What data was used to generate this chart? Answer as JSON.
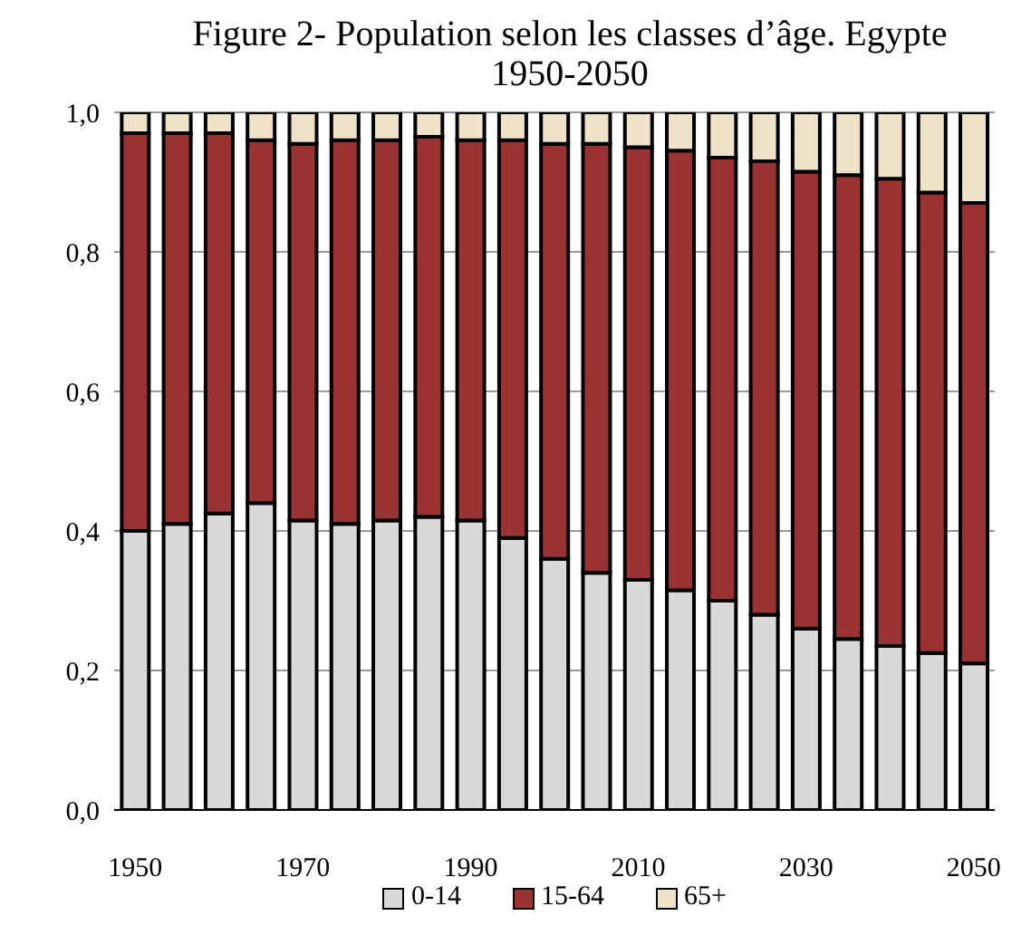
{
  "chart_data": {
    "type": "bar",
    "title": "Figure 2- Population selon les classes d’âge. Egypte 1950-2050",
    "stacked": true,
    "categories": [
      "1950",
      null,
      null,
      null,
      "1970",
      null,
      null,
      null,
      "1990",
      null,
      null,
      null,
      "2010",
      null,
      null,
      null,
      "2030",
      null,
      null,
      null,
      "2050"
    ],
    "series": [
      {
        "name": "0-14",
        "color": "#d9d9d9",
        "values": [
          0.4,
          0.41,
          0.425,
          0.44,
          0.415,
          0.41,
          0.415,
          0.42,
          0.415,
          0.39,
          0.36,
          0.34,
          0.33,
          0.315,
          0.3,
          0.28,
          0.26,
          0.245,
          0.235,
          0.225,
          0.21
        ]
      },
      {
        "name": "15-64",
        "color": "#993333",
        "values": [
          0.57,
          0.56,
          0.545,
          0.52,
          0.54,
          0.55,
          0.545,
          0.545,
          0.545,
          0.57,
          0.595,
          0.615,
          0.62,
          0.63,
          0.635,
          0.65,
          0.655,
          0.665,
          0.67,
          0.66,
          0.66
        ]
      },
      {
        "name": "65+",
        "color": "#eee3c9",
        "values": [
          0.03,
          0.03,
          0.03,
          0.04,
          0.045,
          0.04,
          0.04,
          0.035,
          0.04,
          0.04,
          0.045,
          0.045,
          0.05,
          0.055,
          0.065,
          0.07,
          0.085,
          0.09,
          0.095,
          0.115,
          0.13
        ]
      }
    ],
    "ylim": [
      0,
      1
    ],
    "yticks": [
      {
        "value": 0,
        "label": "0,0"
      },
      {
        "value": 0.2,
        "label": "0,2"
      },
      {
        "value": 0.4,
        "label": "0,4"
      },
      {
        "value": 0.6,
        "label": "0,6"
      },
      {
        "value": 0.8,
        "label": "0,8"
      },
      {
        "value": 1,
        "label": "1,0"
      }
    ],
    "grid": "y",
    "legend": "bottom"
  }
}
